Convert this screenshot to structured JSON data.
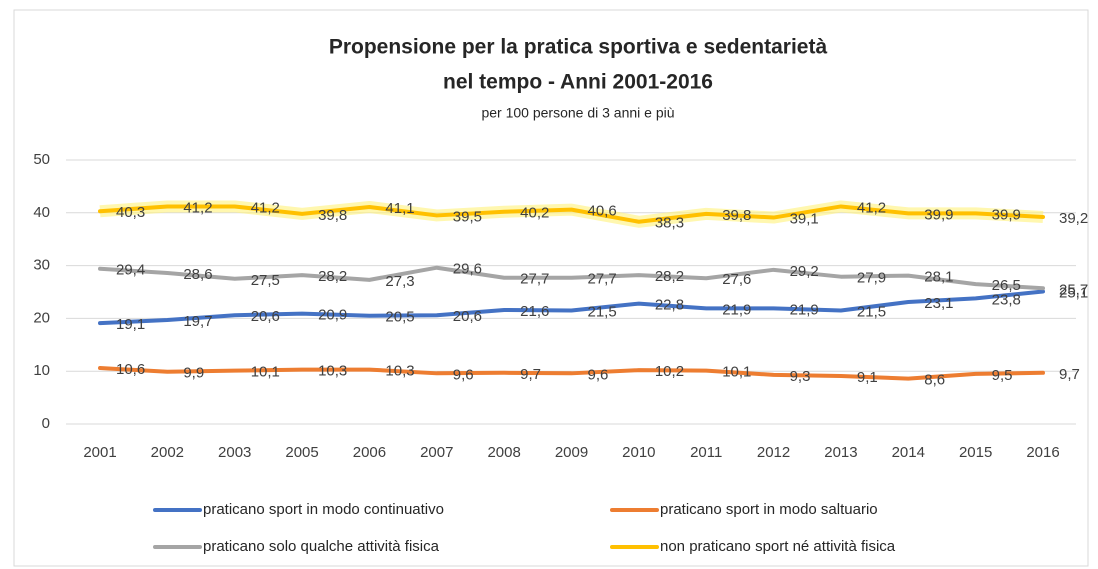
{
  "chart_data": {
    "type": "line",
    "title": [
      "Propensione per la pratica sportiva e sedentarietà",
      "nel tempo - Anni 2001-2016"
    ],
    "subtitle": "per 100 persone di 3 anni e più",
    "categories": [
      "2001",
      "2002",
      "2003",
      "2005",
      "2006",
      "2007",
      "2008",
      "2009",
      "2010",
      "2011",
      "2012",
      "2013",
      "2014",
      "2015",
      "2016"
    ],
    "series": [
      {
        "name": "praticano sport in modo continuativo",
        "color": "#4472c4",
        "values": [
          19.1,
          19.7,
          20.6,
          20.9,
          20.5,
          20.6,
          21.6,
          21.5,
          22.8,
          21.9,
          21.9,
          21.5,
          23.1,
          23.8,
          25.1
        ],
        "value_labels": [
          "19,1",
          "19,7",
          "20,6",
          "20,9",
          "20,5",
          "20,6",
          "21,6",
          "21,5",
          "22,8",
          "21,9",
          "21,9",
          "21,5",
          "23,1",
          "23,8",
          "25,1"
        ]
      },
      {
        "name": "praticano sport in modo saltuario",
        "color": "#ed7d31",
        "values": [
          10.6,
          9.9,
          10.1,
          10.3,
          10.3,
          9.6,
          9.7,
          9.6,
          10.2,
          10.1,
          9.3,
          9.1,
          8.6,
          9.5,
          9.7
        ],
        "value_labels": [
          "10,6",
          "9,9",
          "10,1",
          "10,3",
          "10,3",
          "9,6",
          "9,7",
          "9,6",
          "10,2",
          "10,1",
          "9,3",
          "9,1",
          "8,6",
          "9,5",
          "9,7"
        ]
      },
      {
        "name": "praticano solo qualche attività fisica",
        "color": "#a5a5a5",
        "values": [
          29.4,
          28.6,
          27.5,
          28.2,
          27.3,
          29.6,
          27.7,
          27.7,
          28.2,
          27.6,
          29.2,
          27.9,
          28.1,
          26.5,
          25.7
        ],
        "value_labels": [
          "29,4",
          "28,6",
          "27,5",
          "28,2",
          "27,3",
          "29,6",
          "27,7",
          "27,7",
          "28,2",
          "27,6",
          "29,2",
          "27,9",
          "28,1",
          "26,5",
          "25,7"
        ]
      },
      {
        "name": "non praticano sport né attività fisica",
        "color": "#ffc000",
        "values": [
          40.3,
          41.2,
          41.2,
          39.8,
          41.1,
          39.5,
          40.2,
          40.6,
          38.3,
          39.8,
          39.1,
          41.2,
          39.9,
          39.9,
          39.2
        ],
        "value_labels": [
          "40,3",
          "41,2",
          "41,2",
          "39,8",
          "41,1",
          "39,5",
          "40,2",
          "40,6",
          "38,3",
          "39,8",
          "39,1",
          "41,2",
          "39,9",
          "39,9",
          "39,2"
        ]
      }
    ],
    "ylim": [
      0,
      50
    ],
    "yticks": [
      0,
      10,
      20,
      30,
      40,
      50
    ],
    "grid": true
  }
}
